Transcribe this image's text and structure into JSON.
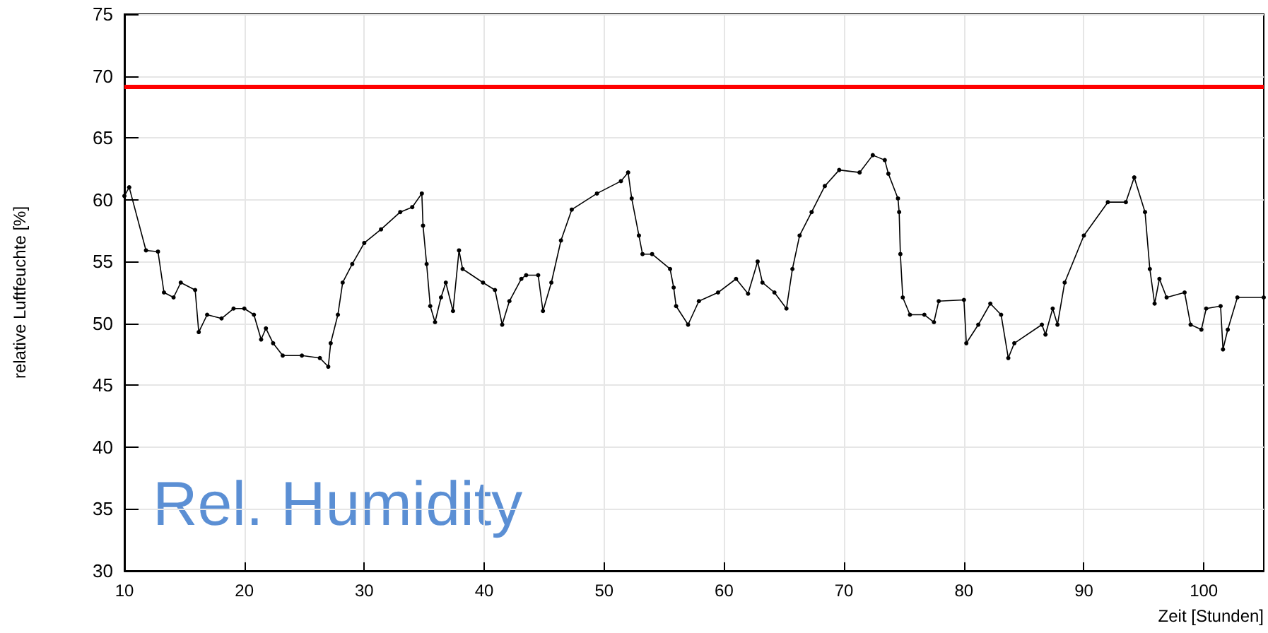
{
  "chart_data": {
    "type": "line",
    "xlabel": "Zeit [Stunden]",
    "ylabel": "relative Luftfeuchte [%]",
    "annotations": [
      "Rel. Humidity"
    ],
    "x": [
      10,
      10.4,
      11.8,
      12.8,
      13.3,
      14.1,
      14.7,
      15.9,
      16.2,
      16.9,
      18.1,
      19.1,
      20.0,
      20.8,
      21.4,
      21.8,
      22.4,
      23.2,
      24.8,
      26.3,
      27.0,
      27.2,
      27.8,
      28.2,
      29.0,
      30.0,
      31.4,
      33.0,
      34.0,
      34.8,
      34.9,
      35.2,
      35.5,
      35.9,
      36.4,
      36.8,
      37.4,
      37.9,
      38.2,
      39.9,
      40.9,
      41.5,
      42.1,
      43.1,
      43.5,
      44.5,
      44.9,
      45.6,
      46.4,
      47.3,
      49.4,
      51.4,
      52.0,
      52.3,
      52.9,
      53.2,
      54.0,
      55.5,
      55.8,
      56.0,
      57.0,
      57.9,
      59.5,
      61.0,
      62.0,
      62.8,
      63.2,
      64.2,
      65.2,
      65.7,
      66.3,
      67.3,
      68.4,
      69.6,
      71.3,
      72.4,
      73.4,
      73.7,
      74.5,
      74.6,
      74.7,
      74.9,
      75.5,
      76.7,
      77.5,
      77.9,
      80.0,
      80.2,
      81.2,
      82.2,
      83.1,
      83.7,
      84.2,
      86.5,
      86.8,
      87.4,
      87.8,
      88.4,
      90.0,
      92.0,
      93.5,
      94.2,
      95.1,
      95.5,
      95.9,
      96.3,
      96.9,
      98.4,
      98.9,
      99.8,
      100.2,
      101.4,
      101.6,
      102.0,
      102.8,
      105.0
    ],
    "series": [
      {
        "color": "#000000",
        "values": [
          60.3,
          61.0,
          55.9,
          55.8,
          52.5,
          52.1,
          53.3,
          52.7,
          49.3,
          50.7,
          50.4,
          51.2,
          51.2,
          50.7,
          48.7,
          49.6,
          48.4,
          47.4,
          47.4,
          47.2,
          46.5,
          48.4,
          50.7,
          53.3,
          54.8,
          56.5,
          57.6,
          59.0,
          59.4,
          60.5,
          57.9,
          54.8,
          51.4,
          50.1,
          52.1,
          53.3,
          51.0,
          55.9,
          54.4,
          53.3,
          52.7,
          49.9,
          51.8,
          53.6,
          53.9,
          53.9,
          51.0,
          53.3,
          56.7,
          59.2,
          60.5,
          61.5,
          62.2,
          60.1,
          57.1,
          55.6,
          55.6,
          54.4,
          52.9,
          51.4,
          49.9,
          51.8,
          52.5,
          53.6,
          52.4,
          55.0,
          53.3,
          52.5,
          51.2,
          54.4,
          57.1,
          59.0,
          61.1,
          62.4,
          62.2,
          63.6,
          63.2,
          62.1,
          60.1,
          59.0,
          55.6,
          52.1,
          50.7,
          50.7,
          50.1,
          51.8,
          51.9,
          48.4,
          49.9,
          51.6,
          50.7,
          47.2,
          48.4,
          49.9,
          49.1,
          51.2,
          49.9,
          53.3,
          57.1,
          59.8,
          59.8,
          61.8,
          59.0,
          54.4,
          51.6,
          53.6,
          52.1,
          52.5,
          49.9,
          49.5,
          51.2,
          51.4,
          47.9,
          49.5,
          52.1,
          52.1
        ]
      }
    ],
    "xlim": [
      10,
      105
    ],
    "xticks": [
      10,
      20,
      30,
      40,
      50,
      60,
      70,
      80,
      90,
      100
    ],
    "ylim": [
      30,
      75
    ],
    "yticks": [
      30,
      35,
      40,
      45,
      50,
      55,
      60,
      65,
      70,
      75
    ],
    "ref_lines": [
      {
        "axis": "y",
        "value": 69.2,
        "color": "#ff0000"
      }
    ],
    "grid": true,
    "marker": "circle"
  }
}
